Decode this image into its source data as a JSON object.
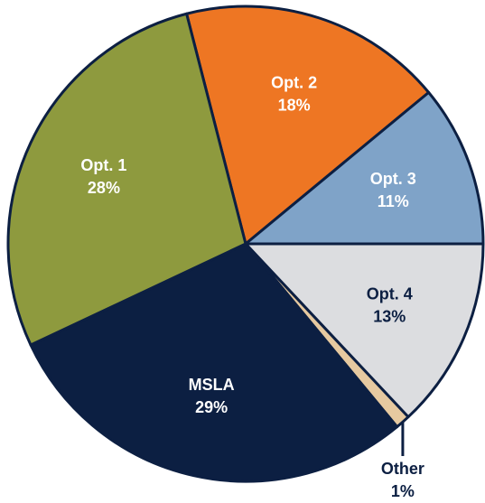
{
  "chart_data": {
    "type": "pie",
    "categories": [
      "Opt. 2",
      "Opt. 3",
      "Opt. 4",
      "Other",
      "MSLA",
      "Opt. 1"
    ],
    "values": [
      18,
      11,
      13,
      1,
      29,
      28
    ],
    "value_labels": [
      "18%",
      "11%",
      "13%",
      "1%",
      "29%",
      "28%"
    ],
    "colors": [
      "#ee7623",
      "#7fa3c8",
      "#dcdde0",
      "#e6c9a0",
      "#0c1f42",
      "#8e9a3e"
    ]
  }
}
